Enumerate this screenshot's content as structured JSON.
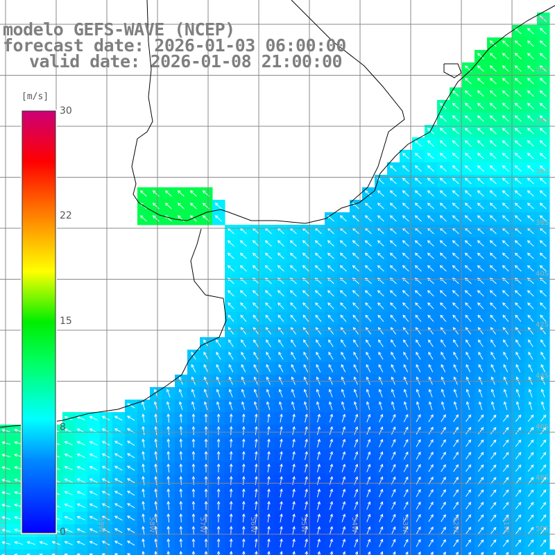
{
  "title": {
    "line1": "modelo GEFS-WAVE (NCEP)",
    "line2": "forecast date: 2026-01-03 06:00:00",
    "line3": "valid date: 2026-01-08 21:00:00"
  },
  "colorbar": {
    "unit": "[m/s]",
    "ticks": [
      "30",
      "22",
      "15",
      "8",
      "0"
    ],
    "min": 0,
    "max": 30,
    "colors": [
      "#0000ff",
      "#00aaff",
      "#00ffff",
      "#00ff00",
      "#ffff00",
      "#ff8000",
      "#ff0000",
      "#cc0077"
    ]
  },
  "grid": {
    "lon_labels": [
      "61W",
      "60W",
      "59W",
      "58W",
      "57W",
      "56W",
      "55W",
      "54W",
      "53W",
      "52W",
      "51W"
    ],
    "lat_labels": [
      "30S",
      "32S",
      "34S",
      "36S",
      "38S",
      "40S",
      "42S",
      "44S",
      "46S",
      "48S",
      "50S"
    ]
  },
  "colors": {
    "land": "#ffffff",
    "coast": "#000000",
    "grid": "#888888",
    "title": "#7f7f7f"
  }
}
